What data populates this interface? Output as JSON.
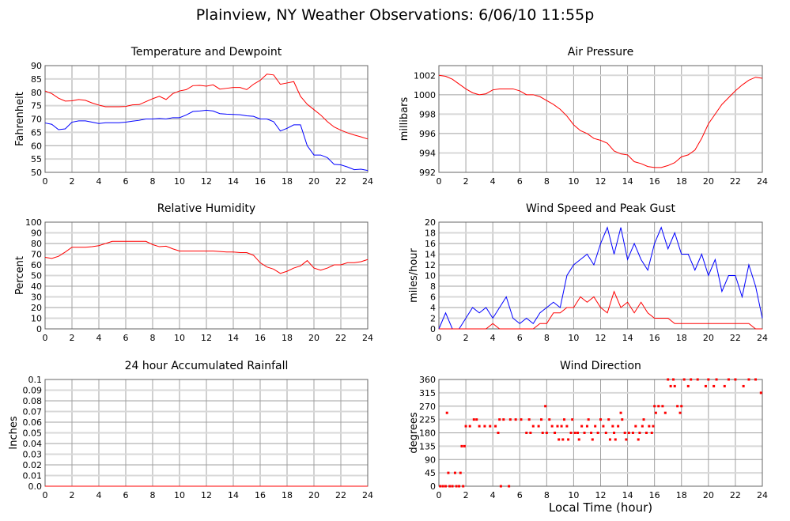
{
  "title": "Plainview, NY Weather Observations: 6/06/10 11:55p",
  "shared_xlabel": "Local Time (hour)",
  "colors": {
    "red": "#ff0000",
    "blue": "#0000ff",
    "grid": "#a0a0a0",
    "grid_light": "#d8d8d8"
  },
  "chart_data": [
    {
      "id": "temp",
      "type": "line",
      "title": "Temperature and Dewpoint",
      "ylabel": "Fahrenheit",
      "xlim": [
        0,
        24
      ],
      "ylim": [
        50,
        90
      ],
      "xticks": [
        "0",
        "2",
        "4",
        "6",
        "8",
        "10",
        "12",
        "14",
        "16",
        "18",
        "20",
        "22",
        "24"
      ],
      "yticks": [
        "50",
        "55",
        "60",
        "65",
        "70",
        "75",
        "80",
        "85",
        "90"
      ],
      "grid": true,
      "series": [
        {
          "color": "#ff0000",
          "values": [
            80.5,
            79.5,
            77.8,
            76.7,
            76.8,
            77.3,
            77,
            76,
            75.2,
            74.6,
            74.6,
            74.6,
            74.7,
            75.3,
            75.4,
            76.5,
            77.6,
            78.5,
            77.3,
            79.5,
            80.5,
            81,
            82.5,
            82.6,
            82.3,
            82.8,
            81.2,
            81.5,
            81.8,
            81.8,
            81,
            83,
            84.5,
            86.8,
            86.5,
            83,
            83.5,
            84,
            78.5,
            75.5,
            73.5,
            71.5,
            69,
            67,
            65.8,
            64.8,
            64,
            63.3,
            62.5
          ]
        },
        {
          "color": "#0000ff",
          "values": [
            68.5,
            68,
            66,
            66.3,
            68.8,
            69.3,
            69.3,
            68.8,
            68.3,
            68.6,
            68.6,
            68.6,
            68.8,
            69.2,
            69.5,
            70,
            70,
            70.2,
            70,
            70.5,
            70.5,
            71.5,
            72.8,
            73,
            73.3,
            73,
            72,
            71.8,
            71.7,
            71.6,
            71.2,
            71,
            70,
            70,
            69,
            65.5,
            66.5,
            67.8,
            67.8,
            60,
            56.5,
            56.5,
            55.5,
            53,
            52.8,
            52,
            51,
            51.2,
            50.7
          ]
        }
      ]
    },
    {
      "id": "pressure",
      "type": "line",
      "title": "Air Pressure",
      "ylabel": "millibars",
      "xlim": [
        0,
        24
      ],
      "ylim": [
        992,
        1003
      ],
      "xticks": [
        "0",
        "2",
        "4",
        "6",
        "8",
        "10",
        "12",
        "14",
        "16",
        "18",
        "20",
        "22",
        "24"
      ],
      "yticks": [
        "992",
        "994",
        "996",
        "998",
        "1000",
        "1002"
      ],
      "grid": true,
      "series": [
        {
          "color": "#ff0000",
          "values": [
            1002,
            1001.9,
            1001.6,
            1001.1,
            1000.6,
            1000.2,
            1000,
            1000.1,
            1000.5,
            1000.6,
            1000.6,
            1000.6,
            1000.4,
            1000,
            1000,
            999.8,
            999.4,
            999,
            998.5,
            997.8,
            996.9,
            996.3,
            996,
            995.5,
            995.3,
            995,
            994.2,
            993.9,
            993.8,
            993.1,
            992.9,
            992.6,
            992.5,
            992.5,
            992.7,
            993,
            993.6,
            993.8,
            994.3,
            995.5,
            997,
            998,
            999,
            999.7,
            1000.4,
            1001,
            1001.5,
            1001.8,
            1001.7
          ]
        }
      ]
    },
    {
      "id": "humidity",
      "type": "line",
      "title": "Relative Humidity",
      "ylabel": "Percent",
      "xlim": [
        0,
        24
      ],
      "ylim": [
        0,
        100
      ],
      "xticks": [
        "0",
        "2",
        "4",
        "6",
        "8",
        "10",
        "12",
        "14",
        "16",
        "18",
        "20",
        "22",
        "24"
      ],
      "yticks": [
        "0",
        "10",
        "20",
        "30",
        "40",
        "50",
        "60",
        "70",
        "80",
        "90",
        "100"
      ],
      "grid": true,
      "series": [
        {
          "color": "#ff0000",
          "values": [
            67,
            66,
            68,
            72,
            76.5,
            76.5,
            76.5,
            77,
            78,
            80,
            82,
            82,
            82,
            82,
            82,
            82,
            79,
            77,
            77.5,
            75,
            73,
            73,
            73,
            73,
            73,
            73,
            72.5,
            72,
            72,
            71.5,
            71.5,
            69,
            62,
            58,
            56,
            52,
            54,
            57,
            59,
            64,
            57,
            55,
            57,
            60,
            60,
            62,
            62,
            63,
            65
          ]
        }
      ]
    },
    {
      "id": "wind",
      "type": "line",
      "title": "Wind Speed and Peak Gust",
      "ylabel": "miles/hour",
      "xlim": [
        0,
        24
      ],
      "ylim": [
        0,
        20
      ],
      "xticks": [
        "0",
        "2",
        "4",
        "6",
        "8",
        "10",
        "12",
        "14",
        "16",
        "18",
        "20",
        "22",
        "24"
      ],
      "yticks": [
        "0",
        "2",
        "4",
        "6",
        "8",
        "10",
        "12",
        "14",
        "16",
        "18",
        "20"
      ],
      "grid": true,
      "series": [
        {
          "color": "#0000ff",
          "values": [
            0,
            3,
            0,
            0,
            2,
            4,
            3,
            4,
            2,
            4,
            6,
            2,
            1,
            2,
            1,
            3,
            4,
            5,
            4,
            10,
            12,
            13,
            14,
            12,
            16,
            19,
            14,
            19,
            13,
            16,
            13,
            11,
            16,
            19,
            15,
            18,
            14,
            14,
            11,
            14,
            10,
            13,
            7,
            10,
            10,
            6,
            12,
            8,
            2
          ]
        },
        {
          "color": "#ff0000",
          "values": [
            0,
            0,
            0,
            0,
            0,
            0,
            0,
            0,
            1,
            0,
            0,
            0,
            0,
            0,
            0,
            1,
            1,
            3,
            3,
            4,
            4,
            6,
            5,
            6,
            4,
            3,
            7,
            4,
            5,
            3,
            5,
            3,
            2,
            2,
            2,
            1,
            1,
            1,
            1,
            1,
            1,
            1,
            1,
            1,
            1,
            1,
            1,
            0,
            0
          ]
        }
      ]
    },
    {
      "id": "rain",
      "type": "line",
      "title": "24 hour Accumulated Rainfall",
      "ylabel": "Inches",
      "xlim": [
        0,
        24
      ],
      "ylim": [
        0,
        0.1
      ],
      "xticks": [
        "0",
        "2",
        "4",
        "6",
        "8",
        "10",
        "12",
        "14",
        "16",
        "18",
        "20",
        "22",
        "24"
      ],
      "yticks": [
        "0.0",
        "0.01",
        "0.02",
        "0.03",
        "0.04",
        "0.05",
        "0.06",
        "0.07",
        "0.08",
        "0.09",
        "0.1"
      ],
      "grid": true,
      "series": [
        {
          "color": "#ff0000",
          "values": [
            0,
            0
          ]
        }
      ]
    },
    {
      "id": "direction",
      "type": "scatter",
      "title": "Wind Direction",
      "ylabel": "degrees",
      "xlim": [
        0,
        24
      ],
      "ylim": [
        0,
        360
      ],
      "xticks": [
        "0",
        "2",
        "4",
        "6",
        "8",
        "10",
        "12",
        "14",
        "16",
        "18",
        "20",
        "22",
        "24"
      ],
      "yticks": [
        "0",
        "45",
        "90",
        "135",
        "180",
        "225",
        "270",
        "315",
        "360"
      ],
      "grid": true,
      "series": [
        {
          "color": "#ff0000",
          "points": [
            [
              0.1,
              0
            ],
            [
              0.3,
              0
            ],
            [
              0.5,
              0
            ],
            [
              0.6,
              247.5
            ],
            [
              0.7,
              45
            ],
            [
              0.8,
              0
            ],
            [
              1,
              0
            ],
            [
              1.2,
              45
            ],
            [
              1.3,
              0
            ],
            [
              1.5,
              0
            ],
            [
              1.6,
              45
            ],
            [
              1.7,
              135
            ],
            [
              1.8,
              0
            ],
            [
              1.9,
              135
            ],
            [
              2,
              202.5
            ],
            [
              2.3,
              202.5
            ],
            [
              2.6,
              225
            ],
            [
              2.8,
              225
            ],
            [
              3,
              202.5
            ],
            [
              3.4,
              202.5
            ],
            [
              3.8,
              202.5
            ],
            [
              4.2,
              202.5
            ],
            [
              4.4,
              180
            ],
            [
              4.5,
              225
            ],
            [
              4.6,
              0
            ],
            [
              4.8,
              225
            ],
            [
              5.2,
              0
            ],
            [
              5.3,
              225
            ],
            [
              5.7,
              225
            ],
            [
              6.1,
              225
            ],
            [
              6.5,
              180
            ],
            [
              6.7,
              225
            ],
            [
              6.8,
              180
            ],
            [
              7,
              202.5
            ],
            [
              7.4,
              202.5
            ],
            [
              7.6,
              225
            ],
            [
              7.7,
              180
            ],
            [
              7.9,
              270
            ],
            [
              8,
              180
            ],
            [
              8.2,
              225
            ],
            [
              8.4,
              202.5
            ],
            [
              8.6,
              180
            ],
            [
              8.8,
              202.5
            ],
            [
              8.9,
              157.5
            ],
            [
              9.1,
              202.5
            ],
            [
              9.2,
              157.5
            ],
            [
              9.3,
              225
            ],
            [
              9.5,
              202.5
            ],
            [
              9.6,
              157.5
            ],
            [
              9.8,
              180
            ],
            [
              9.9,
              225
            ],
            [
              10.1,
              180
            ],
            [
              10.3,
              180
            ],
            [
              10.4,
              157.5
            ],
            [
              10.6,
              202.5
            ],
            [
              10.8,
              180
            ],
            [
              11,
              202.5
            ],
            [
              11.1,
              225
            ],
            [
              11.3,
              180
            ],
            [
              11.4,
              157.5
            ],
            [
              11.6,
              202.5
            ],
            [
              11.8,
              180
            ],
            [
              12,
              225
            ],
            [
              12.2,
              202.5
            ],
            [
              12.4,
              180
            ],
            [
              12.6,
              225
            ],
            [
              12.7,
              157.5
            ],
            [
              12.9,
              202.5
            ],
            [
              13,
              180
            ],
            [
              13.1,
              157.5
            ],
            [
              13.3,
              202.5
            ],
            [
              13.5,
              247.5
            ],
            [
              13.6,
              225
            ],
            [
              13.8,
              180
            ],
            [
              13.9,
              157.5
            ],
            [
              14.1,
              180
            ],
            [
              14.4,
              180
            ],
            [
              14.6,
              202.5
            ],
            [
              14.8,
              157.5
            ],
            [
              14.9,
              180
            ],
            [
              15.1,
              202.5
            ],
            [
              15.2,
              225
            ],
            [
              15.4,
              180
            ],
            [
              15.6,
              202.5
            ],
            [
              15.8,
              180
            ],
            [
              15.9,
              202.5
            ],
            [
              16,
              270
            ],
            [
              16.1,
              247.5
            ],
            [
              16.3,
              270
            ],
            [
              16.6,
              270
            ],
            [
              16.8,
              247.5
            ],
            [
              17,
              360
            ],
            [
              17.2,
              337.5
            ],
            [
              17.4,
              360
            ],
            [
              17.5,
              337.5
            ],
            [
              17.7,
              270
            ],
            [
              17.9,
              247.5
            ],
            [
              18,
              270
            ],
            [
              18.2,
              360
            ],
            [
              18.5,
              337.5
            ],
            [
              18.7,
              360
            ],
            [
              19.2,
              360
            ],
            [
              19.8,
              337.5
            ],
            [
              20,
              360
            ],
            [
              20.4,
              337.5
            ],
            [
              20.6,
              360
            ],
            [
              21.2,
              337.5
            ],
            [
              21.5,
              360
            ],
            [
              22,
              360
            ],
            [
              22.6,
              337.5
            ],
            [
              23,
              360
            ],
            [
              23.5,
              360
            ],
            [
              23.9,
              315
            ]
          ]
        }
      ]
    }
  ]
}
